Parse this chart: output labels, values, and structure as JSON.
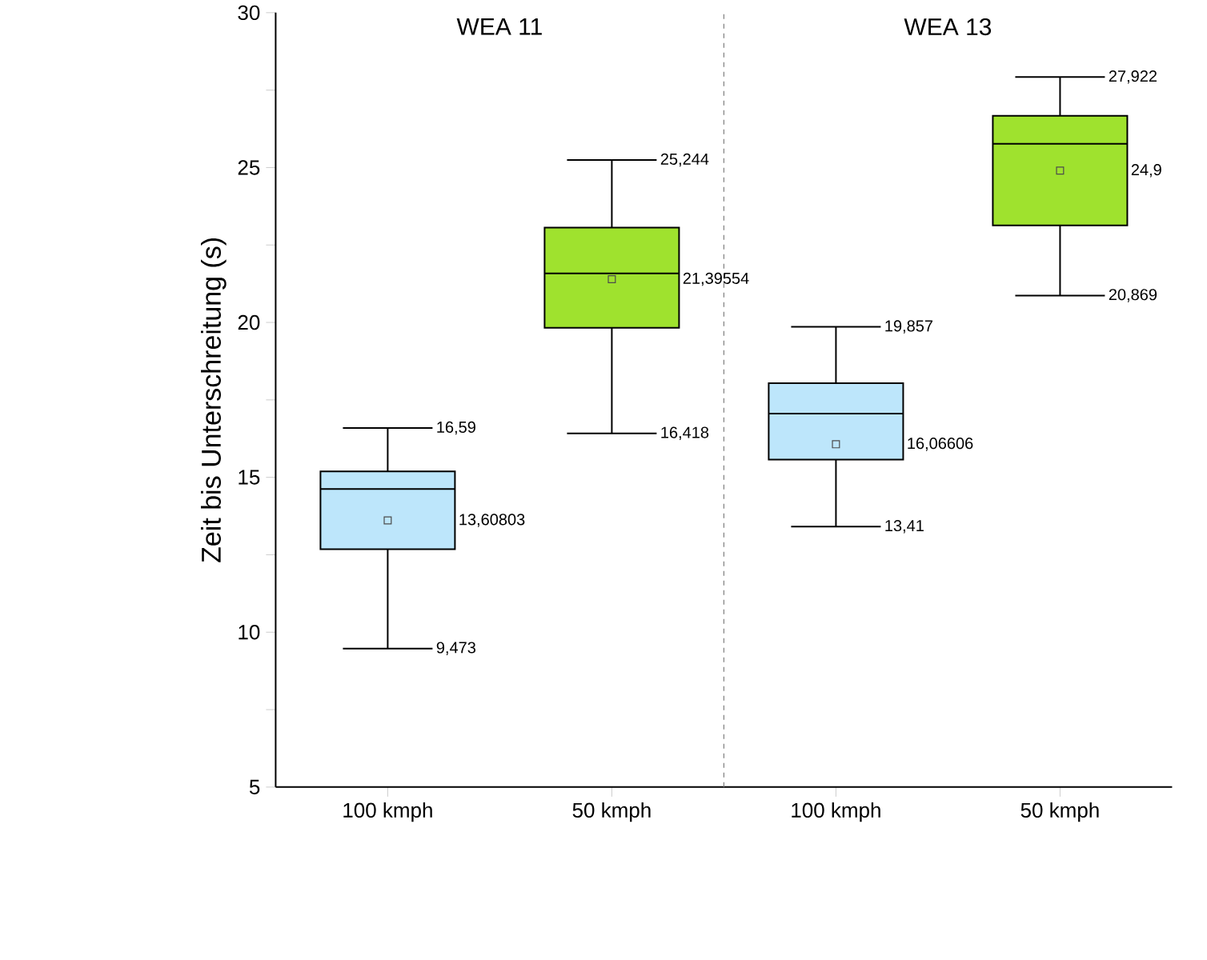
{
  "chart_data": {
    "type": "box",
    "ylabel": "Zeit bis Unterschreitung (s)",
    "categories": [
      "100 kmph",
      "50 kmph",
      "100 kmph",
      "50 kmph"
    ],
    "colors": [
      "#bde6fb",
      "#9fe22e",
      "#bde6fb",
      "#9fe22e"
    ],
    "boxes": [
      {
        "low": 9.473,
        "q1": 12.68,
        "median": 14.62,
        "q3": 15.19,
        "high": 16.59,
        "mean": 13.60803
      },
      {
        "low": 16.418,
        "q1": 19.83,
        "median": 21.58,
        "q3": 23.06,
        "high": 25.244,
        "mean": 21.39554
      },
      {
        "low": 13.41,
        "q1": 15.57,
        "median": 17.06,
        "q3": 18.04,
        "high": 19.857,
        "mean": 16.06606
      },
      {
        "low": 20.869,
        "q1": 23.13,
        "median": 25.77,
        "q3": 26.67,
        "high": 27.922,
        "mean": 24.9
      }
    ],
    "ylim": [
      5,
      30
    ],
    "yticks": [
      5,
      {
        "value": 7.5,
        "label": null
      },
      10,
      {
        "value": 12.5,
        "label": null
      },
      15,
      {
        "value": 17.5,
        "label": null
      },
      20,
      {
        "value": 22.5,
        "label": null
      },
      25,
      {
        "value": 27.5,
        "label": null
      },
      30
    ],
    "marker": "square",
    "annotations": [
      "WEA 11",
      "WEA 13",
      "16,59",
      "13,60803",
      "9,473",
      "25,244",
      "21,39554",
      "16,418",
      "19,857",
      "16,06606",
      "13,41",
      "27,922",
      "24,9",
      "20,869"
    ]
  }
}
